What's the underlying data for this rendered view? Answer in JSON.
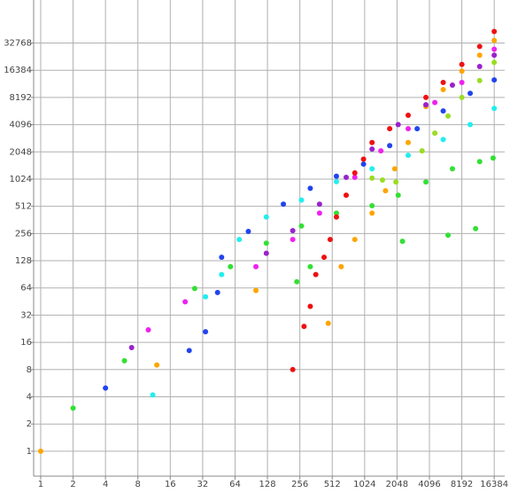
{
  "chart_data": {
    "type": "scatter",
    "log_x": true,
    "log_y": true,
    "grid": true,
    "xlim": [
      0.86,
      20500
    ],
    "ylim": [
      0.53,
      98000
    ],
    "xticks": [
      1,
      2,
      4,
      8,
      16,
      32,
      64,
      128,
      256,
      512,
      1024,
      2048,
      4096,
      8192,
      16384
    ],
    "yticks": [
      1,
      2,
      4,
      8,
      16,
      32,
      64,
      128,
      256,
      512,
      1024,
      2048,
      4096,
      8192,
      16384,
      32768
    ],
    "series": [
      {
        "color": "#ffa500",
        "x": [
          1,
          12,
          100,
          470,
          620,
          830,
          1200,
          1600,
          1950,
          2600,
          3800,
          5500,
          8200,
          12000,
          16384
        ],
        "values": [
          1,
          9,
          60,
          26,
          110,
          220,
          430,
          760,
          1330,
          2600,
          6500,
          10000,
          16000,
          24000,
          35000
        ]
      },
      {
        "color": "#33e033",
        "x": [
          2,
          6,
          27,
          58,
          125,
          265,
          560,
          1200,
          2100,
          3800,
          6700,
          12000,
          16000,
          240,
          320,
          2300,
          6100,
          11000
        ],
        "values": [
          3,
          10,
          63,
          110,
          200,
          310,
          430,
          520,
          680,
          950,
          1330,
          1600,
          1750,
          75,
          110,
          210,
          245,
          290
        ]
      },
      {
        "color": "#99dd22",
        "x": [
          1200,
          1500,
          2000,
          3500,
          4600,
          6100,
          8200,
          12000,
          16384
        ],
        "values": [
          1050,
          1000,
          950,
          2100,
          3300,
          5100,
          8200,
          12600,
          20000
        ]
      },
      {
        "color": "#22eeee",
        "x": [
          11,
          34,
          48,
          70,
          125,
          265,
          560,
          1200,
          2600,
          5500,
          9800,
          16384
        ],
        "values": [
          4.2,
          51,
          90,
          220,
          390,
          600,
          960,
          1330,
          1880,
          2800,
          4100,
          6200
        ]
      },
      {
        "color": "#2244ee",
        "x": [
          4,
          24,
          34,
          44,
          48,
          85,
          180,
          320,
          560,
          1000,
          1750,
          3150,
          5500,
          9800,
          16384
        ],
        "values": [
          5,
          13,
          21,
          57,
          140,
          270,
          540,
          810,
          1100,
          1500,
          2400,
          3700,
          5800,
          9100,
          12800
        ]
      },
      {
        "color": "#9922cc",
        "x": [
          7,
          125,
          220,
          390,
          690,
          1200,
          2100,
          3800,
          6700,
          12000,
          16384
        ],
        "values": [
          14,
          155,
          275,
          540,
          1070,
          2200,
          4100,
          6800,
          11200,
          18000,
          24000
        ]
      },
      {
        "color": "#ee22ee",
        "x": [
          10,
          22,
          100,
          220,
          390,
          830,
          1450,
          2600,
          4600,
          8200,
          16384
        ],
        "values": [
          22,
          45,
          110,
          220,
          430,
          1070,
          2100,
          3700,
          7200,
          12000,
          28000
        ]
      },
      {
        "color": "#ee1111",
        "x": [
          220,
          280,
          320,
          360,
          430,
          490,
          560,
          690,
          830,
          1000,
          1200,
          1750,
          2600,
          3800,
          5500,
          8200,
          12000,
          16384
        ],
        "values": [
          8,
          24,
          40,
          90,
          140,
          220,
          390,
          680,
          1200,
          1700,
          2600,
          3700,
          5200,
          8200,
          12000,
          19000,
          30000,
          44000
        ]
      }
    ]
  }
}
